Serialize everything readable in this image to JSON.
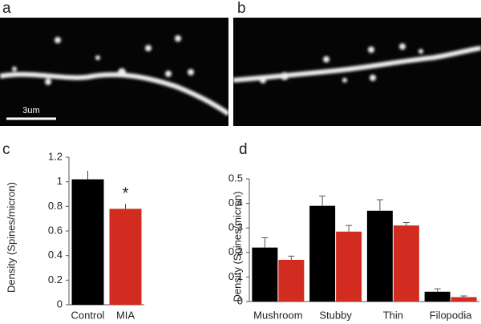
{
  "images": [
    {
      "label": "a",
      "scale_bar": "3um"
    },
    {
      "label": "b"
    }
  ],
  "chart_data": [
    {
      "type": "bar",
      "panel_label": "c",
      "y_label": "Density (Spines/micron)",
      "categories": [
        "Control",
        "MIA"
      ],
      "values": [
        1.02,
        0.78
      ],
      "errors": [
        0.07,
        0.04
      ],
      "colors": [
        "#000000",
        "#d22b20"
      ],
      "annotations": [
        {
          "category": 1,
          "text": "*"
        }
      ],
      "ylim": [
        0,
        1.2
      ],
      "yticks": [
        0,
        0.2,
        0.4,
        0.6,
        0.8,
        1,
        1.2
      ]
    },
    {
      "type": "grouped-bar",
      "panel_label": "d",
      "y_label": "Density (Spines/micron)",
      "categories": [
        "Mushroom",
        "Stubby",
        "Thin",
        "Filopodia"
      ],
      "series": [
        {
          "color": "#000000",
          "values": [
            0.22,
            0.39,
            0.37,
            0.04
          ],
          "errors": [
            0.04,
            0.04,
            0.045,
            0.012
          ]
        },
        {
          "color": "#d22b20",
          "values": [
            0.17,
            0.285,
            0.31,
            0.018
          ],
          "errors": [
            0.015,
            0.025,
            0.012,
            0.005
          ]
        }
      ],
      "ylim": [
        0,
        0.5
      ],
      "yticks": [
        0,
        0.1,
        0.2,
        0.3,
        0.4,
        0.5
      ]
    }
  ]
}
